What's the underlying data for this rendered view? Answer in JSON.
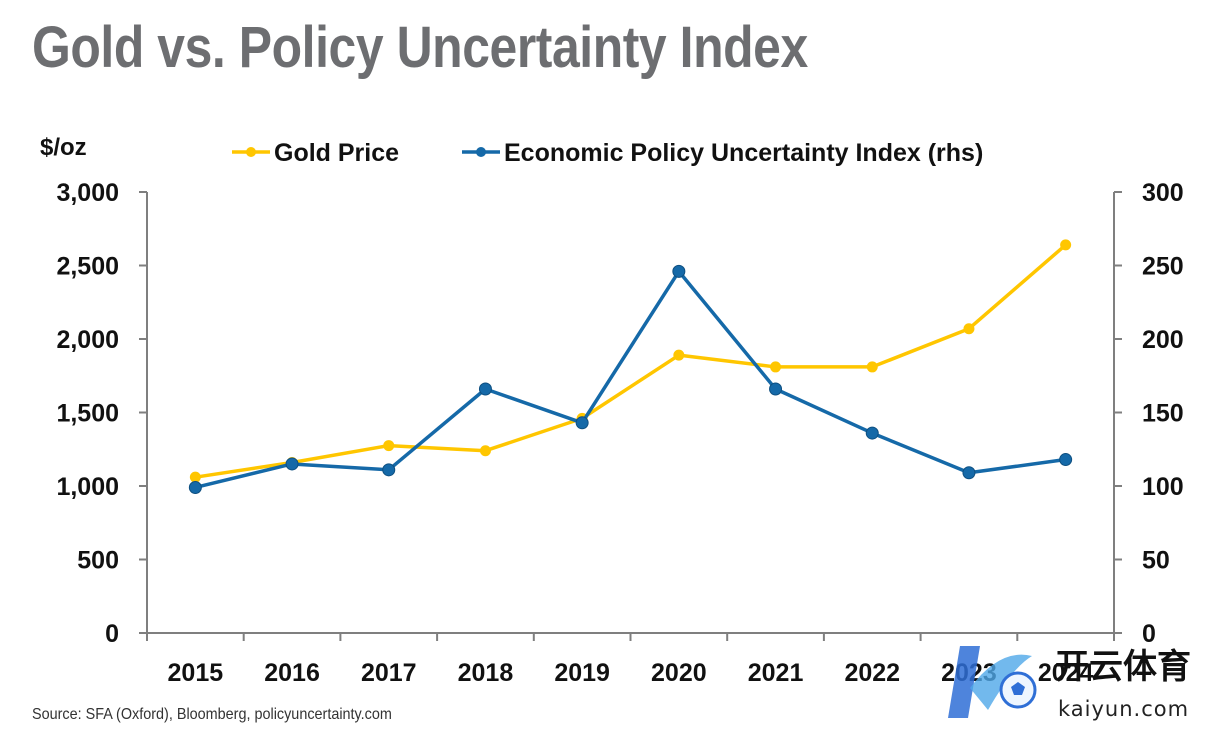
{
  "title": "Gold vs. Policy Uncertainty Index",
  "source": "Source: SFA (Oxford), Bloomberg, policyuncertainty.com",
  "watermark": {
    "cn_text": "开云体育",
    "en_text": "kaiyun.com"
  },
  "colors": {
    "gold": "#ffc600",
    "epu": "#1569a8",
    "axis": "#7f7f7f",
    "title": "#6d6e71"
  },
  "chart_data": {
    "type": "line",
    "title": "Gold vs. Policy Uncertainty Index",
    "x": [
      "2015",
      "2016",
      "2017",
      "2018",
      "2019",
      "2020",
      "2021",
      "2022",
      "2023",
      "2024"
    ],
    "y_left_unit": "$/oz",
    "y_left_range": [
      0,
      3000
    ],
    "y_left_ticks": [
      "0",
      "500",
      "1,000",
      "1,500",
      "2,000",
      "2,500",
      "3,000"
    ],
    "y_right_range": [
      0,
      300
    ],
    "y_right_ticks": [
      "0",
      "50",
      "100",
      "150",
      "200",
      "250",
      "300"
    ],
    "grid": false,
    "legend_position": "top",
    "series": [
      {
        "name": "Gold Price",
        "axis": "left",
        "color": "#ffc600",
        "values": [
          1060,
          1160,
          1275,
          1240,
          1460,
          1890,
          1810,
          1810,
          2070,
          2640
        ]
      },
      {
        "name": "Economic Policy Uncertainty Index (rhs)",
        "axis": "right",
        "color": "#1569a8",
        "values": [
          99,
          115,
          111,
          166,
          143,
          246,
          166,
          136,
          109,
          118
        ]
      }
    ]
  }
}
